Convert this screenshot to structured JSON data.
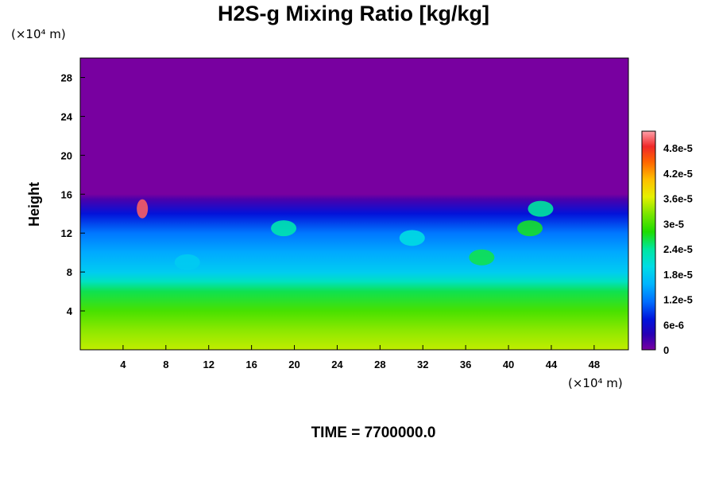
{
  "chart_data": {
    "type": "heatmap",
    "title": "H2S-g Mixing Ratio [kg/kg]",
    "ylabel": "Height",
    "x_unit_label": "(×10⁴ m)",
    "y_unit_label": "(×10⁴ m)",
    "footer": "TIME = 7700000.0",
    "xlim": [
      0,
      51.2
    ],
    "ylim": [
      0,
      30
    ],
    "x_ticks": [
      4,
      8,
      12,
      16,
      20,
      24,
      28,
      32,
      36,
      40,
      44,
      48
    ],
    "y_ticks": [
      4,
      8,
      12,
      16,
      20,
      24,
      28
    ],
    "colorbar": {
      "range": [
        0,
        5.2e-05
      ],
      "ticks": [
        {
          "value": 0,
          "label": "0"
        },
        {
          "value": 6e-06,
          "label": "6e-6"
        },
        {
          "value": 1.2e-05,
          "label": "1.2e-5"
        },
        {
          "value": 1.8e-05,
          "label": "1.8e-5"
        },
        {
          "value": 2.4e-05,
          "label": "2.4e-5"
        },
        {
          "value": 3e-05,
          "label": "3e-5"
        },
        {
          "value": 3.6e-05,
          "label": "3.6e-5"
        },
        {
          "value": 4.2e-05,
          "label": "4.2e-5"
        },
        {
          "value": 4.8e-05,
          "label": "4.8e-5"
        }
      ]
    },
    "profile": [
      {
        "height": 0,
        "value": 3.5e-05
      },
      {
        "height": 2,
        "value": 3.3e-05
      },
      {
        "height": 4,
        "value": 3e-05
      },
      {
        "height": 6,
        "value": 2.6e-05
      },
      {
        "height": 7,
        "value": 2.2e-05
      },
      {
        "height": 8,
        "value": 1.8e-05
      },
      {
        "height": 10,
        "value": 1.5e-05
      },
      {
        "height": 12,
        "value": 1.2e-05
      },
      {
        "height": 14,
        "value": 7e-06
      },
      {
        "height": 15.5,
        "value": 2e-06
      },
      {
        "height": 16,
        "value": 0
      },
      {
        "height": 30,
        "value": 0
      }
    ],
    "plumes": [
      {
        "x": 5.8,
        "y": 14.5,
        "value": 5e-05
      },
      {
        "x": 19,
        "y": 12.5,
        "value": 2.3e-05
      },
      {
        "x": 31,
        "y": 11.5,
        "value": 2e-05
      },
      {
        "x": 37.5,
        "y": 9.5,
        "value": 2.6e-05
      },
      {
        "x": 42,
        "y": 12.5,
        "value": 2.7e-05
      },
      {
        "x": 43,
        "y": 14.5,
        "value": 2.4e-05
      },
      {
        "x": 10,
        "y": 9,
        "value": 1.8e-05
      }
    ]
  }
}
